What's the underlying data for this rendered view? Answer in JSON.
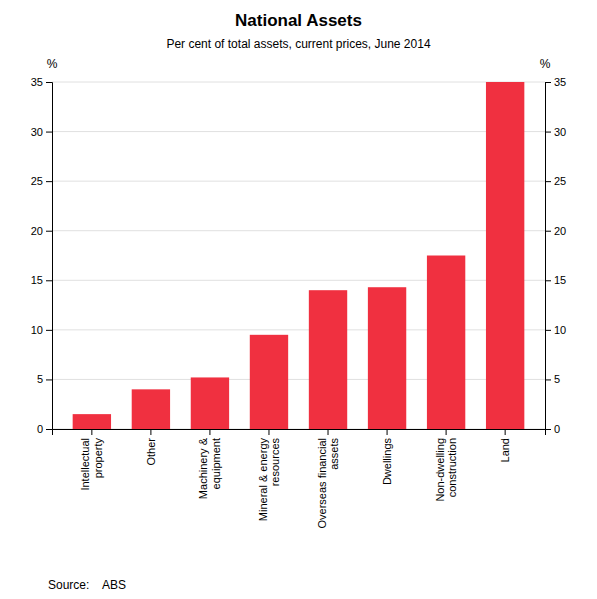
{
  "chart_data": {
    "type": "bar",
    "title": "National Assets",
    "subtitle": "Per cent of total assets, current prices, June 2014",
    "categories": [
      "Intellectual\nproperty",
      "Other",
      "Machinery &\nequipment",
      "Mineral & energy\nresources",
      "Overseas financial\nassets",
      "Dwellings",
      "Non-dwelling\nconstruction",
      "Land"
    ],
    "values": [
      1.5,
      4.0,
      5.2,
      9.5,
      14.0,
      14.3,
      17.5,
      35.0
    ],
    "color": "#f03040",
    "ylim": [
      0,
      35
    ],
    "yticks": [
      0,
      5,
      10,
      15,
      20,
      25,
      30,
      35
    ],
    "y2lim": [
      0,
      35
    ],
    "y2ticks": [
      0,
      5,
      10,
      15,
      20,
      25,
      30,
      35
    ],
    "ylabel": "%",
    "y2label": "%",
    "source": "Source:    ABS",
    "grid": true
  }
}
